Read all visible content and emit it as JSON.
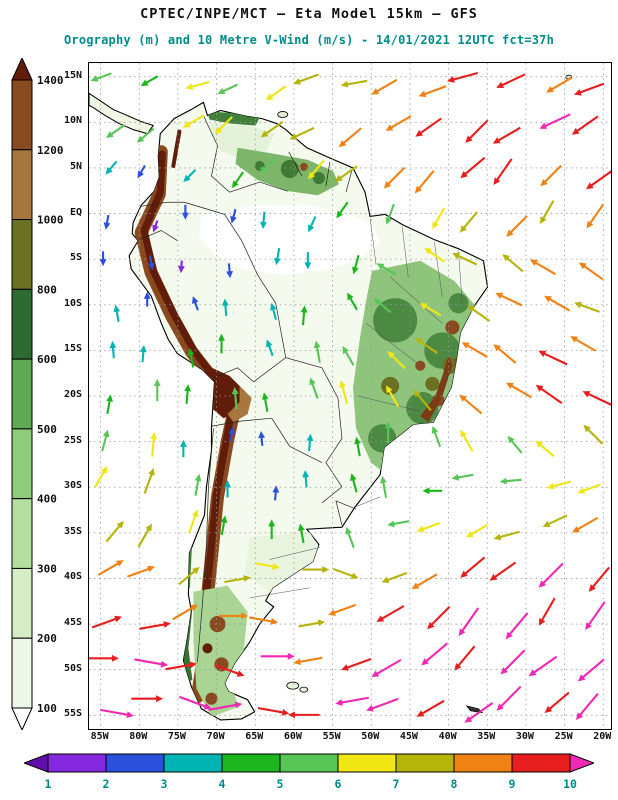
{
  "header": {
    "title": "CPTEC/INPE/MCT —  Eta Model 15km — GFS",
    "subtitle": "Orography (m) and 10 Metre V-Wind (m/s) - 14/01/2021 12UTC fct=37h",
    "title_color": "#111111",
    "subtitle_color": "#008b8b"
  },
  "axes": {
    "lat_labels": [
      "15N",
      "10N",
      "5N",
      "EQ",
      "5S",
      "10S",
      "15S",
      "20S",
      "25S",
      "30S",
      "35S",
      "40S",
      "45S",
      "50S",
      "55S"
    ],
    "lon_labels": [
      "85W",
      "80W",
      "75W",
      "70W",
      "65W",
      "60W",
      "55W",
      "50W",
      "45W",
      "40W",
      "35W",
      "30W",
      "25W",
      "20W"
    ]
  },
  "orography_scale": {
    "unit": "m",
    "tick_labels_top_to_bottom": [
      "1400",
      "1200",
      "1000",
      "800",
      "600",
      "500",
      "400",
      "300",
      "200",
      "100"
    ],
    "colors_bottom_to_top": [
      "#ffffff",
      "#edf7e6",
      "#d4edc4",
      "#b5dfa0",
      "#8fcc7a",
      "#5fa952",
      "#2e6b33",
      "#6b7023",
      "#a8763f",
      "#8a4a1f",
      "#611c0a"
    ]
  },
  "wind_scale": {
    "unit": "m/s",
    "tick_labels": [
      "1",
      "2",
      "3",
      "4",
      "5",
      "6",
      "7",
      "8",
      "9",
      "10"
    ],
    "colors_low_to_high": [
      "#5f0ea8",
      "#8428e0",
      "#2b50dc",
      "#00b4b4",
      "#1eb41e",
      "#57c657",
      "#f0e614",
      "#b4b40a",
      "#f08214",
      "#e61e1e",
      "#f028b4"
    ],
    "label_color": "#008b8b"
  },
  "chart_data": {
    "type": "vector_field_map",
    "region": "South America",
    "source": "CPTEC/INPE/MCT",
    "model": "Eta Model 15km",
    "boundary": "GFS",
    "valid": "14/01/2021 12UTC",
    "forecast": "fct=37h",
    "fields": [
      "Orography (m)",
      "10 Metre V-Wind (m/s)"
    ],
    "lon_extent": [
      "85W",
      "20W"
    ],
    "lat_extent": [
      "15N",
      "55S"
    ],
    "orography_levels_m": [
      100,
      200,
      300,
      400,
      500,
      600,
      800,
      1000,
      1200,
      1400
    ],
    "wind_levels_ms": [
      1,
      2,
      3,
      4,
      5,
      6,
      7,
      8,
      9,
      10
    ],
    "wind_grid": {
      "encoding": "[direction_deg_math(0=E,90=N), speed_ms] on 13x15 grid over map extent",
      "cols": 13,
      "rows": 15,
      "cells": [
        [
          [
            200,
            5
          ],
          [
            210,
            4
          ],
          [
            195,
            6
          ],
          [
            205,
            5
          ],
          [
            215,
            6
          ],
          [
            200,
            7
          ],
          [
            190,
            7
          ],
          [
            210,
            8
          ],
          [
            200,
            8
          ],
          [
            195,
            9
          ],
          [
            205,
            9
          ],
          [
            210,
            8
          ],
          [
            200,
            9
          ]
        ],
        [
          [
            215,
            5
          ],
          [
            220,
            5
          ],
          [
            210,
            6
          ],
          [
            225,
            6
          ],
          [
            215,
            7
          ],
          [
            205,
            7
          ],
          [
            220,
            8
          ],
          [
            210,
            8
          ],
          [
            215,
            9
          ],
          [
            225,
            9
          ],
          [
            210,
            9
          ],
          [
            205,
            10
          ],
          [
            215,
            9
          ]
        ],
        [
          [
            230,
            3
          ],
          [
            240,
            2
          ],
          [
            225,
            3
          ],
          [
            235,
            4
          ],
          [
            220,
            5
          ],
          [
            230,
            6
          ],
          [
            215,
            7
          ],
          [
            225,
            8
          ],
          [
            230,
            8
          ],
          [
            220,
            9
          ],
          [
            235,
            9
          ],
          [
            225,
            8
          ],
          [
            215,
            9
          ]
        ],
        [
          [
            260,
            2
          ],
          [
            250,
            1
          ],
          [
            270,
            2
          ],
          [
            255,
            2
          ],
          [
            265,
            3
          ],
          [
            245,
            3
          ],
          [
            235,
            4
          ],
          [
            250,
            5
          ],
          [
            240,
            6
          ],
          [
            230,
            7
          ],
          [
            225,
            8
          ],
          [
            240,
            7
          ],
          [
            235,
            8
          ]
        ],
        [
          [
            270,
            2
          ],
          [
            280,
            2
          ],
          [
            265,
            1
          ],
          [
            275,
            2
          ],
          [
            260,
            3
          ],
          [
            270,
            3
          ],
          [
            255,
            4
          ],
          [
            150,
            5
          ],
          [
            145,
            6
          ],
          [
            155,
            7
          ],
          [
            140,
            7
          ],
          [
            150,
            8
          ],
          [
            145,
            8
          ]
        ],
        [
          [
            100,
            3
          ],
          [
            90,
            2
          ],
          [
            110,
            2
          ],
          [
            95,
            3
          ],
          [
            105,
            3
          ],
          [
            85,
            4
          ],
          [
            120,
            4
          ],
          [
            140,
            5
          ],
          [
            150,
            6
          ],
          [
            145,
            7
          ],
          [
            155,
            8
          ],
          [
            150,
            8
          ],
          [
            160,
            7
          ]
        ],
        [
          [
            95,
            3
          ],
          [
            85,
            3
          ],
          [
            100,
            4
          ],
          [
            90,
            4
          ],
          [
            110,
            3
          ],
          [
            100,
            5
          ],
          [
            120,
            5
          ],
          [
            135,
            6
          ],
          [
            145,
            7
          ],
          [
            150,
            8
          ],
          [
            140,
            8
          ],
          [
            155,
            9
          ],
          [
            150,
            8
          ]
        ],
        [
          [
            80,
            4
          ],
          [
            90,
            5
          ],
          [
            85,
            4
          ],
          [
            95,
            5
          ],
          [
            100,
            4
          ],
          [
            110,
            5
          ],
          [
            105,
            6
          ],
          [
            120,
            6
          ],
          [
            130,
            7
          ],
          [
            140,
            8
          ],
          [
            150,
            8
          ],
          [
            145,
            9
          ],
          [
            155,
            9
          ]
        ],
        [
          [
            75,
            5
          ],
          [
            85,
            6
          ],
          [
            90,
            3
          ],
          [
            80,
            2
          ],
          [
            95,
            2
          ],
          [
            85,
            3
          ],
          [
            100,
            4
          ],
          [
            90,
            5
          ],
          [
            110,
            5
          ],
          [
            120,
            6
          ],
          [
            130,
            5
          ],
          [
            140,
            6
          ],
          [
            135,
            7
          ]
        ],
        [
          [
            60,
            6
          ],
          [
            70,
            7
          ],
          [
            80,
            5
          ],
          [
            90,
            3
          ],
          [
            85,
            2
          ],
          [
            95,
            3
          ],
          [
            105,
            4
          ],
          [
            100,
            5
          ],
          [
            180,
            4
          ],
          [
            190,
            5
          ],
          [
            185,
            5
          ],
          [
            195,
            6
          ],
          [
            200,
            6
          ]
        ],
        [
          [
            50,
            7
          ],
          [
            60,
            7
          ],
          [
            70,
            6
          ],
          [
            80,
            4
          ],
          [
            90,
            4
          ],
          [
            100,
            4
          ],
          [
            110,
            5
          ],
          [
            190,
            5
          ],
          [
            200,
            6
          ],
          [
            210,
            6
          ],
          [
            195,
            7
          ],
          [
            205,
            7
          ],
          [
            210,
            8
          ]
        ],
        [
          [
            30,
            8
          ],
          [
            20,
            8
          ],
          [
            40,
            7
          ],
          [
            10,
            7
          ],
          [
            350,
            6
          ],
          [
            0,
            7
          ],
          [
            340,
            7
          ],
          [
            200,
            7
          ],
          [
            210,
            8
          ],
          [
            220,
            9
          ],
          [
            215,
            9
          ],
          [
            225,
            10
          ],
          [
            230,
            9
          ]
        ],
        [
          [
            20,
            9
          ],
          [
            10,
            9
          ],
          [
            30,
            8
          ],
          [
            0,
            8
          ],
          [
            350,
            8
          ],
          [
            10,
            7
          ],
          [
            200,
            8
          ],
          [
            210,
            9
          ],
          [
            225,
            9
          ],
          [
            235,
            10
          ],
          [
            230,
            10
          ],
          [
            240,
            9
          ],
          [
            235,
            10
          ]
        ],
        [
          [
            0,
            9
          ],
          [
            350,
            10
          ],
          [
            10,
            9
          ],
          [
            340,
            9
          ],
          [
            0,
            10
          ],
          [
            190,
            8
          ],
          [
            200,
            9
          ],
          [
            210,
            10
          ],
          [
            220,
            10
          ],
          [
            230,
            9
          ],
          [
            225,
            10
          ],
          [
            215,
            10
          ],
          [
            220,
            10
          ]
        ],
        [
          [
            350,
            10
          ],
          [
            0,
            9
          ],
          [
            340,
            10
          ],
          [
            10,
            10
          ],
          [
            350,
            9
          ],
          [
            180,
            9
          ],
          [
            190,
            10
          ],
          [
            200,
            10
          ],
          [
            210,
            9
          ],
          [
            215,
            10
          ],
          [
            225,
            10
          ],
          [
            220,
            9
          ],
          [
            230,
            10
          ]
        ]
      ]
    }
  }
}
